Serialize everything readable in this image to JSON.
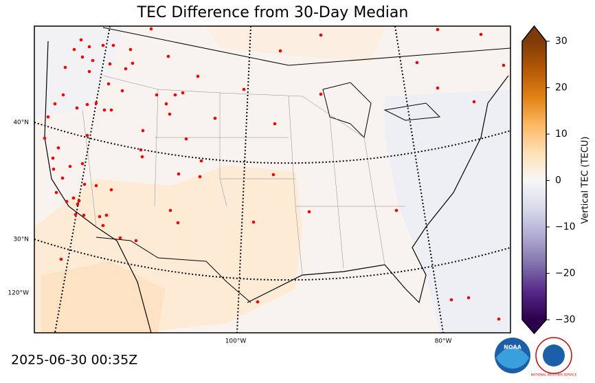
{
  "title": "TEC Difference from 30-Day Median",
  "map": {
    "lat_labels": [
      "40°N",
      "30°N"
    ],
    "lon_labels_left": [
      "120°W"
    ],
    "lon_labels_bottom": [
      "100°W",
      "80°W"
    ]
  },
  "colorbar": {
    "label": "Vertical TEC (TECU)",
    "range": [
      -30,
      30
    ],
    "ticks": [
      {
        "value": -30,
        "label": "−30"
      },
      {
        "value": -20,
        "label": "−20"
      },
      {
        "value": -10,
        "label": "−10"
      },
      0,
      10,
      20,
      30
    ],
    "colors": [
      "#2d004b",
      "#542788",
      "#8073ac",
      "#b2abd2",
      "#d8daeb",
      "#f7f7f7",
      "#fee0b6",
      "#fdb863",
      "#e08214",
      "#b35806",
      "#7f3b08"
    ]
  },
  "timestamp": "2025-06-30 00:35Z",
  "logos": {
    "noaa": "NOAA",
    "nws": "NATIONAL WEATHER SERVICE"
  }
}
